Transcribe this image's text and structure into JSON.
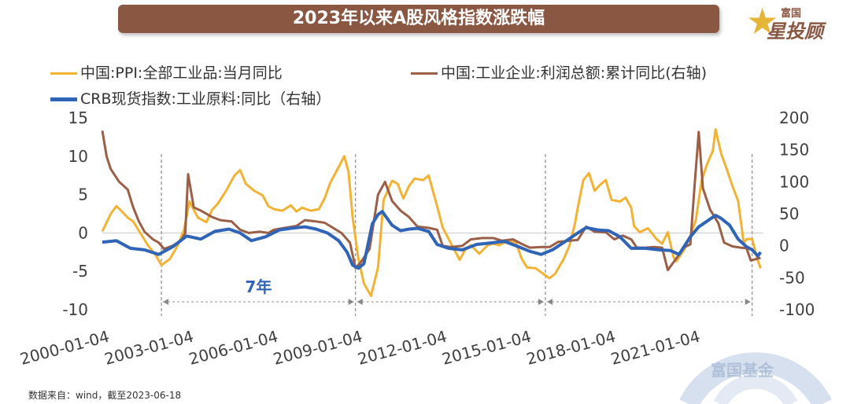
{
  "title": "2023年以来A股风格指数涨跌幅",
  "logo": {
    "small_text": "富国",
    "big_text": "星投顾"
  },
  "watermark_text": "富国基金",
  "source": "数据来自：wind，截至2023-06-18",
  "annotation": "7年",
  "colors": {
    "ppi": "#f2b233",
    "profit": "#9b5e46",
    "crb": "#2f64b6",
    "title_bg": "#8a5742"
  },
  "chart_data": {
    "type": "line",
    "x_tick_labels": [
      "2000-01-04",
      "2003-01-04",
      "2006-01-04",
      "2009-01-04",
      "2012-01-04",
      "2015-01-04",
      "2018-01-04",
      "2021-01-04"
    ],
    "x_range": [
      2000.0,
      2023.5
    ],
    "y_left": {
      "ticks": [
        15,
        10,
        5,
        0,
        -5,
        -10
      ],
      "range": [
        -10,
        15
      ]
    },
    "y_right": {
      "ticks": [
        200,
        150,
        100,
        50,
        0,
        -50,
        -100
      ],
      "range": [
        -100,
        200
      ]
    },
    "zero_line": true,
    "grid": false,
    "legend_position": "top",
    "cycle_markers_year": [
      2002.1,
      2009.0,
      2015.75,
      2023.1
    ],
    "series": [
      {
        "name": "中国:PPI:全部工业品:当月同比",
        "axis": "left",
        "points": [
          [
            2000.0,
            0.2
          ],
          [
            2000.3,
            2.5
          ],
          [
            2000.5,
            3.5
          ],
          [
            2000.7,
            2.8
          ],
          [
            2000.9,
            2.0
          ],
          [
            2001.1,
            1.5
          ],
          [
            2001.3,
            0.3
          ],
          [
            2001.6,
            -1.5
          ],
          [
            2001.9,
            -2.9
          ],
          [
            2002.1,
            -4.2
          ],
          [
            2002.4,
            -3.4
          ],
          [
            2002.7,
            -1.5
          ],
          [
            2002.9,
            0.4
          ],
          [
            2003.1,
            4.1
          ],
          [
            2003.4,
            2.0
          ],
          [
            2003.7,
            1.4
          ],
          [
            2003.9,
            3.0
          ],
          [
            2004.1,
            3.8
          ],
          [
            2004.4,
            5.5
          ],
          [
            2004.7,
            7.5
          ],
          [
            2004.9,
            8.2
          ],
          [
            2005.1,
            6.4
          ],
          [
            2005.4,
            5.5
          ],
          [
            2005.7,
            4.9
          ],
          [
            2005.9,
            3.5
          ],
          [
            2006.1,
            3.1
          ],
          [
            2006.4,
            2.9
          ],
          [
            2006.7,
            3.6
          ],
          [
            2006.9,
            2.8
          ],
          [
            2007.1,
            3.3
          ],
          [
            2007.4,
            2.9
          ],
          [
            2007.7,
            3.1
          ],
          [
            2007.9,
            4.5
          ],
          [
            2008.1,
            6.5
          ],
          [
            2008.4,
            8.6
          ],
          [
            2008.6,
            10.0
          ],
          [
            2008.75,
            8.0
          ],
          [
            2008.9,
            2.0
          ],
          [
            2009.1,
            -3.3
          ],
          [
            2009.3,
            -6.6
          ],
          [
            2009.55,
            -8.2
          ],
          [
            2009.8,
            -4.5
          ],
          [
            2010.0,
            4.3
          ],
          [
            2010.3,
            6.8
          ],
          [
            2010.5,
            6.4
          ],
          [
            2010.7,
            4.5
          ],
          [
            2010.9,
            6.1
          ],
          [
            2011.1,
            7.1
          ],
          [
            2011.4,
            6.9
          ],
          [
            2011.6,
            7.5
          ],
          [
            2011.9,
            3.5
          ],
          [
            2012.1,
            0.7
          ],
          [
            2012.4,
            -1.4
          ],
          [
            2012.7,
            -3.5
          ],
          [
            2012.9,
            -2.2
          ],
          [
            2013.1,
            -1.6
          ],
          [
            2013.4,
            -2.7
          ],
          [
            2013.7,
            -1.6
          ],
          [
            2013.9,
            -1.4
          ],
          [
            2014.1,
            -1.6
          ],
          [
            2014.4,
            -1.1
          ],
          [
            2014.7,
            -1.2
          ],
          [
            2014.9,
            -3.3
          ],
          [
            2015.1,
            -4.5
          ],
          [
            2015.4,
            -4.6
          ],
          [
            2015.7,
            -5.4
          ],
          [
            2015.9,
            -5.9
          ],
          [
            2016.1,
            -5.3
          ],
          [
            2016.4,
            -3.4
          ],
          [
            2016.6,
            -1.7
          ],
          [
            2016.8,
            1.2
          ],
          [
            2016.9,
            3.3
          ],
          [
            2017.1,
            6.9
          ],
          [
            2017.3,
            7.8
          ],
          [
            2017.5,
            5.5
          ],
          [
            2017.7,
            6.3
          ],
          [
            2017.9,
            6.9
          ],
          [
            2018.1,
            4.3
          ],
          [
            2018.4,
            4.1
          ],
          [
            2018.6,
            4.6
          ],
          [
            2018.8,
            3.3
          ],
          [
            2018.9,
            0.9
          ],
          [
            2019.1,
            0.1
          ],
          [
            2019.4,
            0.6
          ],
          [
            2019.7,
            -0.8
          ],
          [
            2019.9,
            -1.4
          ],
          [
            2020.1,
            0.1
          ],
          [
            2020.3,
            -3.1
          ],
          [
            2020.4,
            -3.7
          ],
          [
            2020.7,
            -2.1
          ],
          [
            2020.9,
            -0.4
          ],
          [
            2021.1,
            1.7
          ],
          [
            2021.3,
            6.8
          ],
          [
            2021.5,
            9.0
          ],
          [
            2021.7,
            10.7
          ],
          [
            2021.8,
            13.5
          ],
          [
            2022.0,
            10.3
          ],
          [
            2022.2,
            8.3
          ],
          [
            2022.4,
            6.1
          ],
          [
            2022.6,
            4.2
          ],
          [
            2022.8,
            -1.3
          ],
          [
            2022.9,
            -0.8
          ],
          [
            2023.1,
            -0.8
          ],
          [
            2023.3,
            -3.6
          ],
          [
            2023.4,
            -4.6
          ]
        ]
      },
      {
        "name": "中国:工业企业:利润总额:累计同比(右轴)",
        "axis": "right",
        "points": [
          [
            2000.0,
            180
          ],
          [
            2000.15,
            140
          ],
          [
            2000.3,
            120
          ],
          [
            2000.6,
            100
          ],
          [
            2000.9,
            88
          ],
          [
            2001.1,
            60
          ],
          [
            2001.3,
            38
          ],
          [
            2001.5,
            22
          ],
          [
            2001.8,
            10
          ],
          [
            2002.0,
            5
          ],
          [
            2002.2,
            -5
          ],
          [
            2002.5,
            0
          ],
          [
            2002.8,
            8
          ],
          [
            2002.95,
            20
          ],
          [
            2003.05,
            112
          ],
          [
            2003.25,
            60
          ],
          [
            2003.5,
            55
          ],
          [
            2003.9,
            45
          ],
          [
            2004.2,
            40
          ],
          [
            2004.6,
            38
          ],
          [
            2004.9,
            25
          ],
          [
            2005.2,
            20
          ],
          [
            2005.6,
            22
          ],
          [
            2005.9,
            20
          ],
          [
            2006.1,
            25
          ],
          [
            2006.5,
            28
          ],
          [
            2006.9,
            31
          ],
          [
            2007.2,
            40
          ],
          [
            2007.6,
            38
          ],
          [
            2007.9,
            36
          ],
          [
            2008.2,
            28
          ],
          [
            2008.5,
            20
          ],
          [
            2008.8,
            5
          ],
          [
            2009.0,
            -35
          ],
          [
            2009.2,
            -25
          ],
          [
            2009.5,
            -5
          ],
          [
            2009.8,
            80
          ],
          [
            2010.05,
            100
          ],
          [
            2010.3,
            70
          ],
          [
            2010.6,
            55
          ],
          [
            2010.9,
            45
          ],
          [
            2011.2,
            30
          ],
          [
            2011.6,
            28
          ],
          [
            2011.9,
            25
          ],
          [
            2012.1,
            0
          ],
          [
            2012.4,
            -2
          ],
          [
            2012.8,
            0
          ],
          [
            2013.1,
            10
          ],
          [
            2013.5,
            12
          ],
          [
            2013.9,
            12
          ],
          [
            2014.2,
            8
          ],
          [
            2014.6,
            10
          ],
          [
            2014.9,
            3
          ],
          [
            2015.2,
            -3
          ],
          [
            2015.6,
            -2
          ],
          [
            2015.9,
            -2
          ],
          [
            2016.2,
            6
          ],
          [
            2016.6,
            8
          ],
          [
            2016.9,
            9
          ],
          [
            2017.2,
            30
          ],
          [
            2017.5,
            22
          ],
          [
            2017.9,
            21
          ],
          [
            2018.2,
            10
          ],
          [
            2018.5,
            16
          ],
          [
            2018.8,
            10
          ],
          [
            2019.0,
            -3
          ],
          [
            2019.3,
            -3
          ],
          [
            2019.6,
            -2
          ],
          [
            2019.9,
            -3
          ],
          [
            2020.1,
            -38
          ],
          [
            2020.4,
            -20
          ],
          [
            2020.7,
            -2
          ],
          [
            2020.9,
            2
          ],
          [
            2021.05,
            92
          ],
          [
            2021.2,
            178
          ],
          [
            2021.35,
            90
          ],
          [
            2021.6,
            57
          ],
          [
            2021.9,
            35
          ],
          [
            2022.1,
            5
          ],
          [
            2022.4,
            -1
          ],
          [
            2022.7,
            -3
          ],
          [
            2022.9,
            -4
          ],
          [
            2023.05,
            -23
          ],
          [
            2023.3,
            -20
          ],
          [
            2023.4,
            -19
          ]
        ]
      },
      {
        "name": "CRB现货指数:工业原料:同比（右轴）",
        "axis": "right",
        "points": [
          [
            2000.0,
            -1.2
          ],
          [
            2000.5,
            -1.0
          ],
          [
            2001.0,
            -2.0
          ],
          [
            2001.5,
            -2.2
          ],
          [
            2002.0,
            -2.8
          ],
          [
            2002.5,
            -1.8
          ],
          [
            2003.0,
            -0.4
          ],
          [
            2003.5,
            -0.8
          ],
          [
            2004.0,
            0.2
          ],
          [
            2004.5,
            0.5
          ],
          [
            2004.9,
            0.0
          ],
          [
            2005.3,
            -1.0
          ],
          [
            2005.8,
            -0.5
          ],
          [
            2006.3,
            0.4
          ],
          [
            2006.7,
            0.6
          ],
          [
            2007.2,
            0.8
          ],
          [
            2007.6,
            0.5
          ],
          [
            2008.0,
            0.0
          ],
          [
            2008.4,
            -1.0
          ],
          [
            2008.7,
            -2.5
          ],
          [
            2008.9,
            -4.2
          ],
          [
            2009.1,
            -4.6
          ],
          [
            2009.3,
            -4.0
          ],
          [
            2009.6,
            1.2
          ],
          [
            2009.8,
            2.4
          ],
          [
            2009.95,
            2.8
          ],
          [
            2010.3,
            1.0
          ],
          [
            2010.6,
            0.3
          ],
          [
            2010.9,
            0.5
          ],
          [
            2011.2,
            0.6
          ],
          [
            2011.6,
            0.2
          ],
          [
            2011.9,
            -1.5
          ],
          [
            2012.3,
            -2.0
          ],
          [
            2012.8,
            -2.2
          ],
          [
            2013.3,
            -1.5
          ],
          [
            2013.8,
            -1.3
          ],
          [
            2014.3,
            -1.1
          ],
          [
            2014.8,
            -1.8
          ],
          [
            2015.2,
            -2.4
          ],
          [
            2015.6,
            -2.8
          ],
          [
            2016.0,
            -2.2
          ],
          [
            2016.5,
            -1.0
          ],
          [
            2016.9,
            0.0
          ],
          [
            2017.2,
            0.7
          ],
          [
            2017.6,
            0.4
          ],
          [
            2018.0,
            0.3
          ],
          [
            2018.4,
            -0.5
          ],
          [
            2018.8,
            -2.0
          ],
          [
            2019.3,
            -2.0
          ],
          [
            2019.8,
            -2.2
          ],
          [
            2020.2,
            -2.3
          ],
          [
            2020.5,
            -2.8
          ],
          [
            2020.9,
            -0.5
          ],
          [
            2021.2,
            0.8
          ],
          [
            2021.6,
            1.8
          ],
          [
            2021.8,
            2.3
          ],
          [
            2022.0,
            1.9
          ],
          [
            2022.3,
            1.0
          ],
          [
            2022.6,
            -0.8
          ],
          [
            2022.9,
            -1.8
          ],
          [
            2023.1,
            -2.2
          ],
          [
            2023.3,
            -3.0
          ],
          [
            2023.4,
            -2.5
          ]
        ]
      }
    ]
  }
}
